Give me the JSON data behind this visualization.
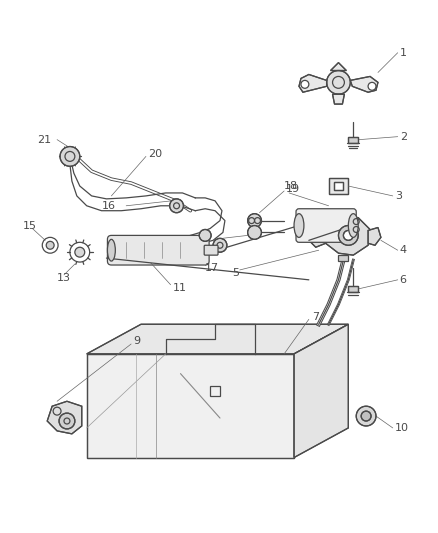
{
  "bg_color": "#ffffff",
  "line_color": "#4a4a4a",
  "label_color": "#4a4a4a",
  "fig_width": 4.38,
  "fig_height": 5.33
}
